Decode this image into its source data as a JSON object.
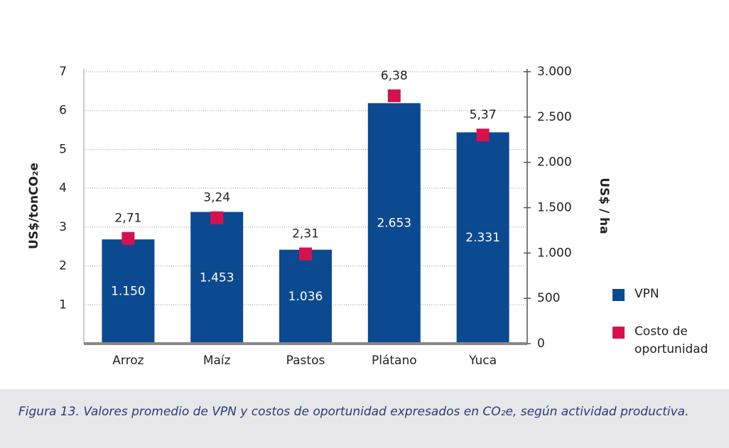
{
  "chart_data": {
    "type": "bar",
    "categories": [
      "Arroz",
      "Maíz",
      "Pastos",
      "Plátano",
      "Yuca"
    ],
    "series": [
      {
        "name": "VPN",
        "type": "bar",
        "axis": "y2",
        "color": "#0b4a90",
        "values": [
          1150,
          1453,
          1036,
          2653,
          2331
        ],
        "value_labels": [
          "1.150",
          "1.453",
          "1.036",
          "2.653",
          "2.331"
        ]
      },
      {
        "name": "Costo de oportunidad",
        "type": "scatter",
        "color": "#d5124e",
        "values": [
          2.71,
          3.24,
          2.31,
          6.38,
          5.37
        ],
        "value_labels": [
          "2,71",
          "3,24",
          "2,31",
          "6,38",
          "5,37"
        ]
      }
    ],
    "ylabel": "US$/tonCO₂e",
    "y2label": "US$ / ha",
    "ylim": [
      0,
      7
    ],
    "yticks": [
      1,
      2,
      3,
      4,
      5,
      6,
      7
    ],
    "y2lim": [
      0,
      3000
    ],
    "y2ticks": [
      0,
      500,
      {
        "value": 1000,
        "label": "1.000"
      },
      {
        "value": 1500,
        "label": "1.500"
      },
      {
        "value": 2000,
        "label": "2.000"
      },
      {
        "value": 2500,
        "label": "2.500"
      },
      {
        "value": 3000,
        "label": "3.000"
      }
    ],
    "grid": true,
    "legend": "right",
    "caption": "Figura 13. Valores promedio de VPN y costos de oportunidad expresados en CO₂e, según actividad productiva."
  }
}
